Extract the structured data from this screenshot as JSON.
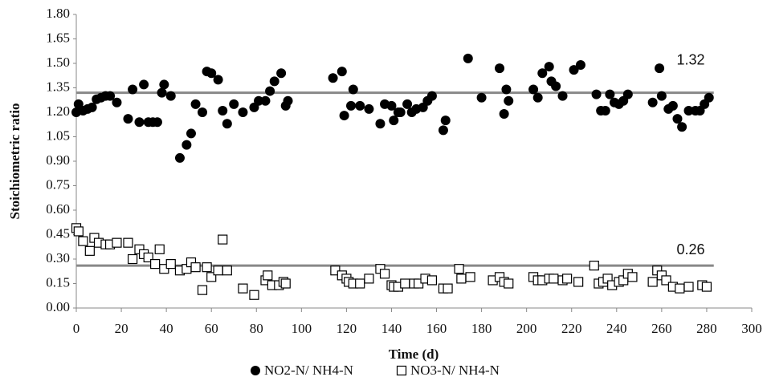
{
  "chart_data": {
    "type": "scatter",
    "xlabel": "Time (d)",
    "ylabel": "Stoichiometric ratio",
    "xlim": [
      0,
      300
    ],
    "xticks": [
      0,
      20,
      40,
      60,
      80,
      100,
      120,
      140,
      160,
      180,
      200,
      220,
      240,
      260,
      280,
      300
    ],
    "ylim": [
      0,
      1.8
    ],
    "yticks": [
      {
        "value": 0,
        "label": "0.00"
      },
      {
        "value": 0.15,
        "label": "0.15"
      },
      {
        "value": 0.3,
        "label": "0.30"
      },
      {
        "value": 0.45,
        "label": "0.45"
      },
      {
        "value": 0.6,
        "label": "0.60"
      },
      {
        "value": 0.75,
        "label": "0.75"
      },
      {
        "value": 0.9,
        "label": "0.90"
      },
      {
        "value": 1.05,
        "label": "1.05"
      },
      {
        "value": 1.2,
        "label": "1.20"
      },
      {
        "value": 1.35,
        "label": "1.35"
      },
      {
        "value": 1.5,
        "label": "1.50"
      },
      {
        "value": 1.65,
        "label": "1.65"
      },
      {
        "value": 1.8,
        "label": "1.80"
      }
    ],
    "grid": false,
    "hlines": [
      1.32,
      0.26
    ],
    "hline_color": "#888888",
    "series": [
      {
        "name": "NO2-N/ NH4-N",
        "color": "#000000",
        "marker": "circle",
        "x": [
          0,
          1,
          3,
          5,
          7,
          9,
          11,
          13,
          15,
          18,
          23,
          25,
          28,
          30,
          32,
          34,
          36,
          38,
          39,
          42,
          46,
          49,
          51,
          53,
          56,
          58,
          60,
          63,
          65,
          67,
          70,
          74,
          79,
          81,
          84,
          86,
          88,
          91,
          93,
          94,
          114,
          118,
          119,
          122,
          123,
          126,
          130,
          135,
          137,
          140,
          141,
          143,
          144,
          147,
          149,
          151,
          154,
          156,
          158,
          163,
          164,
          174,
          180,
          188,
          190,
          191,
          192,
          203,
          205,
          207,
          210,
          211,
          213,
          216,
          221,
          224,
          231,
          233,
          235,
          237,
          239,
          241,
          243,
          245,
          256,
          259,
          260,
          263,
          265,
          267,
          269,
          272,
          275,
          277,
          279,
          281
        ],
        "values": [
          1.2,
          1.25,
          1.21,
          1.22,
          1.23,
          1.28,
          1.29,
          1.3,
          1.3,
          1.26,
          1.16,
          1.34,
          1.14,
          1.37,
          1.14,
          1.14,
          1.14,
          1.32,
          1.37,
          1.3,
          0.92,
          1.0,
          1.07,
          1.25,
          1.2,
          1.45,
          1.44,
          1.4,
          1.21,
          1.13,
          1.25,
          1.2,
          1.23,
          1.27,
          1.27,
          1.33,
          1.39,
          1.44,
          1.24,
          1.27,
          1.41,
          1.45,
          1.18,
          1.24,
          1.34,
          1.24,
          1.22,
          1.13,
          1.25,
          1.24,
          1.15,
          1.2,
          1.2,
          1.25,
          1.2,
          1.22,
          1.23,
          1.27,
          1.3,
          1.09,
          1.15,
          1.53,
          1.29,
          1.47,
          1.19,
          1.34,
          1.27,
          1.34,
          1.29,
          1.44,
          1.48,
          1.39,
          1.36,
          1.3,
          1.46,
          1.49,
          1.31,
          1.21,
          1.21,
          1.31,
          1.26,
          1.25,
          1.27,
          1.31,
          1.26,
          1.47,
          1.3,
          1.22,
          1.24,
          1.16,
          1.11,
          1.21,
          1.21,
          1.21,
          1.25,
          1.29
        ]
      },
      {
        "name": "NO3-N/ NH4-N",
        "color": "#000000",
        "marker": "square",
        "x": [
          0,
          1,
          3,
          6,
          8,
          10,
          13,
          15,
          18,
          23,
          25,
          28,
          30,
          32,
          35,
          37,
          39,
          42,
          46,
          49,
          51,
          53,
          56,
          58,
          60,
          63,
          65,
          67,
          74,
          79,
          84,
          85,
          87,
          90,
          92,
          93,
          115,
          118,
          120,
          121,
          123,
          126,
          130,
          135,
          137,
          140,
          141,
          143,
          146,
          150,
          152,
          155,
          158,
          163,
          165,
          170,
          171,
          175,
          185,
          188,
          190,
          192,
          203,
          205,
          207,
          210,
          212,
          216,
          218,
          223,
          230,
          232,
          234,
          236,
          238,
          241,
          243,
          245,
          247,
          256,
          258,
          260,
          262,
          265,
          268,
          272,
          278,
          280
        ],
        "values": [
          0.49,
          0.47,
          0.41,
          0.35,
          0.43,
          0.4,
          0.39,
          0.39,
          0.4,
          0.4,
          0.3,
          0.36,
          0.33,
          0.31,
          0.27,
          0.36,
          0.24,
          0.27,
          0.23,
          0.24,
          0.28,
          0.25,
          0.11,
          0.25,
          0.19,
          0.23,
          0.42,
          0.23,
          0.12,
          0.08,
          0.17,
          0.2,
          0.14,
          0.14,
          0.16,
          0.15,
          0.23,
          0.2,
          0.18,
          0.16,
          0.15,
          0.15,
          0.18,
          0.24,
          0.21,
          0.14,
          0.13,
          0.13,
          0.15,
          0.15,
          0.15,
          0.18,
          0.17,
          0.12,
          0.12,
          0.24,
          0.18,
          0.19,
          0.17,
          0.19,
          0.16,
          0.15,
          0.19,
          0.17,
          0.17,
          0.18,
          0.18,
          0.17,
          0.18,
          0.16,
          0.26,
          0.15,
          0.16,
          0.18,
          0.14,
          0.16,
          0.17,
          0.21,
          0.19,
          0.16,
          0.23,
          0.2,
          0.17,
          0.13,
          0.12,
          0.13,
          0.14,
          0.13
        ]
      }
    ]
  }
}
